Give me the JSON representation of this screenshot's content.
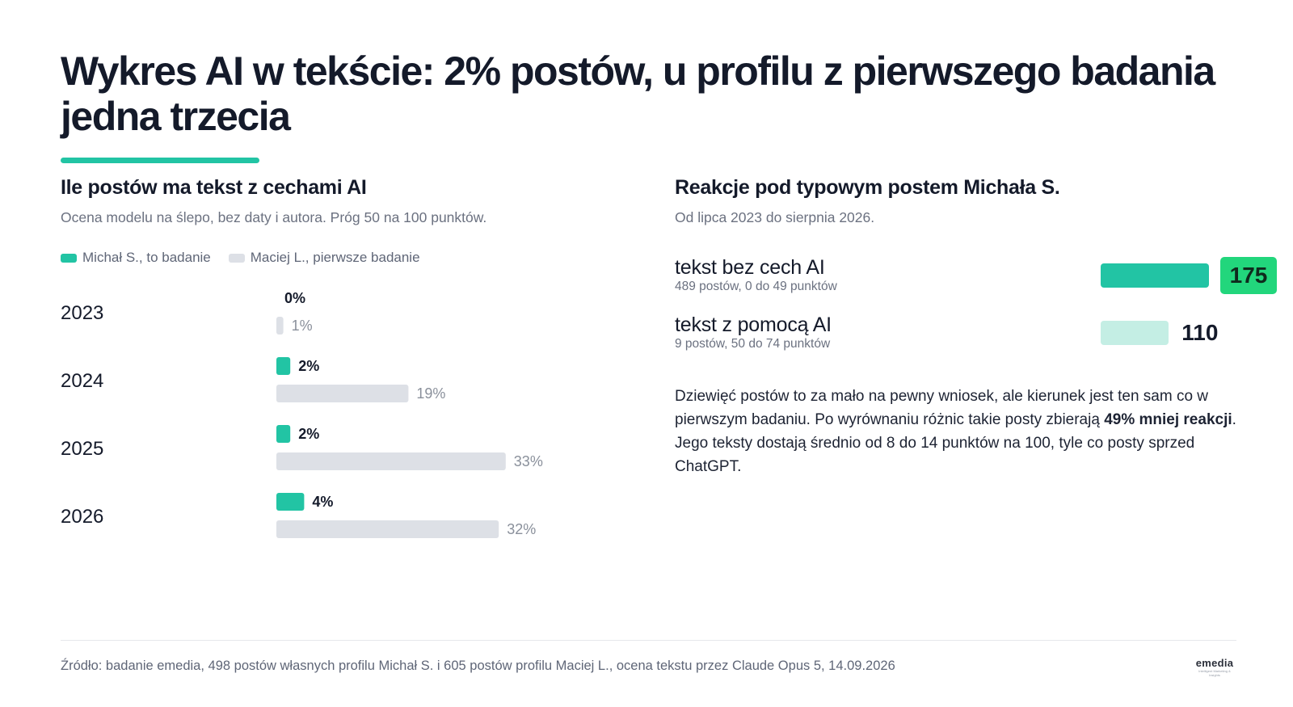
{
  "headline": "Wykres AI w tekście: 2% postów, u profilu z pierwszego badania jedna trzecia",
  "colors": {
    "accent": "#22c4a4",
    "light_series": "#dde0e6",
    "highlight": "#22d67c",
    "pale_accent": "#c4eee4"
  },
  "left_panel": {
    "title": "Ile postów ma tekst z cechami AI",
    "subtitle": "Ocena modelu na ślepo, bez daty i autora. Próg 50 na 100 punktów."
  },
  "right_panel": {
    "title": "Reakcje pod typowym postem Michała S.",
    "subtitle": "Od lipca 2023 do sierpnia 2026.",
    "body_parts": [
      "Dziewięć postów to za mało na pewny wniosek, ale kierunek jest ten sam co w pierwszym badaniu. Po wyrównaniu różnic takie posty zbierają ",
      "49% mniej reakcji",
      ". Jego teksty dostają średnio od 8 do 14 punktów na 100, tyle co posty sprzed ChatGPT."
    ]
  },
  "chart_data": [
    {
      "type": "bar",
      "orientation": "horizontal",
      "categories": [
        "2023",
        "2024",
        "2025",
        "2026"
      ],
      "series": [
        {
          "name": "Michał S., to badanie",
          "color": "#22c4a4",
          "values": [
            0,
            2,
            2,
            4
          ],
          "labels": [
            "0%",
            "2%",
            "2%",
            "4%"
          ]
        },
        {
          "name": "Maciej L., pierwsze badanie",
          "color": "#dde0e6",
          "values": [
            1,
            19,
            33,
            32
          ],
          "labels": [
            "1%",
            "19%",
            "33%",
            "32%"
          ]
        }
      ],
      "unit": "%",
      "legend": "top-left",
      "grid": false
    },
    {
      "type": "bar",
      "orientation": "horizontal",
      "categories": [
        "tekst bez cech AI",
        "tekst z pomocą AI"
      ],
      "category_details": [
        "489 postów, 0 do 49 punktów",
        "9 postów, 50 do 74 punktów"
      ],
      "values": [
        175,
        110
      ],
      "labels": [
        "175",
        "110"
      ],
      "colors": [
        "#22c4a4",
        "#c4eee4"
      ],
      "highlighted": [
        true,
        false
      ],
      "grid": false
    }
  ],
  "footer": "Źródło: badanie emedia, 498 postów własnych profilu Michał S. i 605 postów profilu Maciej L., ocena tekstu przez Claude Opus 5, 14.09.2026",
  "logo": {
    "word": "emedia",
    "tagline": "Intelligent Marketing & Insights"
  }
}
